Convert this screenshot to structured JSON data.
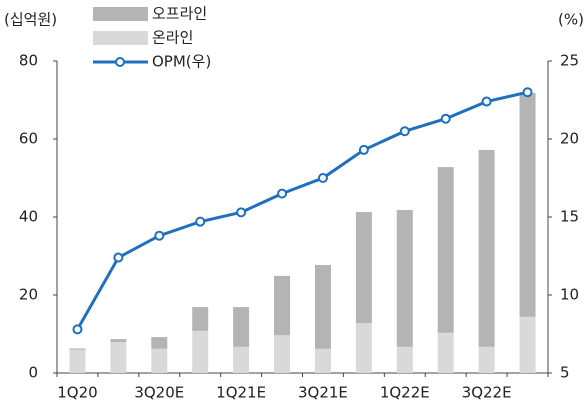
{
  "chart_data": {
    "type": "bar",
    "y_label": "(십억원)",
    "y2_label": "(%)",
    "categories": [
      "1Q20",
      null,
      "3Q20E",
      null,
      "1Q21E",
      null,
      "3Q21E",
      null,
      "1Q22E",
      null,
      "3Q22E",
      null
    ],
    "series": [
      {
        "name": "온라인",
        "color": "#d9d9d9",
        "values": [
          6.0,
          7.9,
          6.2,
          10.8,
          6.7,
          9.7,
          6.2,
          12.8,
          6.7,
          10.3,
          6.7,
          14.4
        ]
      },
      {
        "name": "오프라인",
        "color": "#b4b4b4",
        "values": [
          0.3,
          0.8,
          3.0,
          6.1,
          10.2,
          15.2,
          21.5,
          28.5,
          35.1,
          42.5,
          50.5,
          57.4
        ]
      },
      {
        "name": "OPM(우)",
        "color": "#1f6fbf",
        "type": "line",
        "axis": "y2",
        "values": [
          7.8,
          12.4,
          13.8,
          14.7,
          15.3,
          16.5,
          17.5,
          19.3,
          20.5,
          21.3,
          22.4,
          23.0
        ]
      }
    ],
    "ylim": [
      0,
      80
    ],
    "yticks": [
      0,
      20,
      40,
      60,
      80
    ],
    "y2lim": [
      5,
      25
    ],
    "y2ticks": [
      5,
      10,
      15,
      20,
      25
    ]
  }
}
